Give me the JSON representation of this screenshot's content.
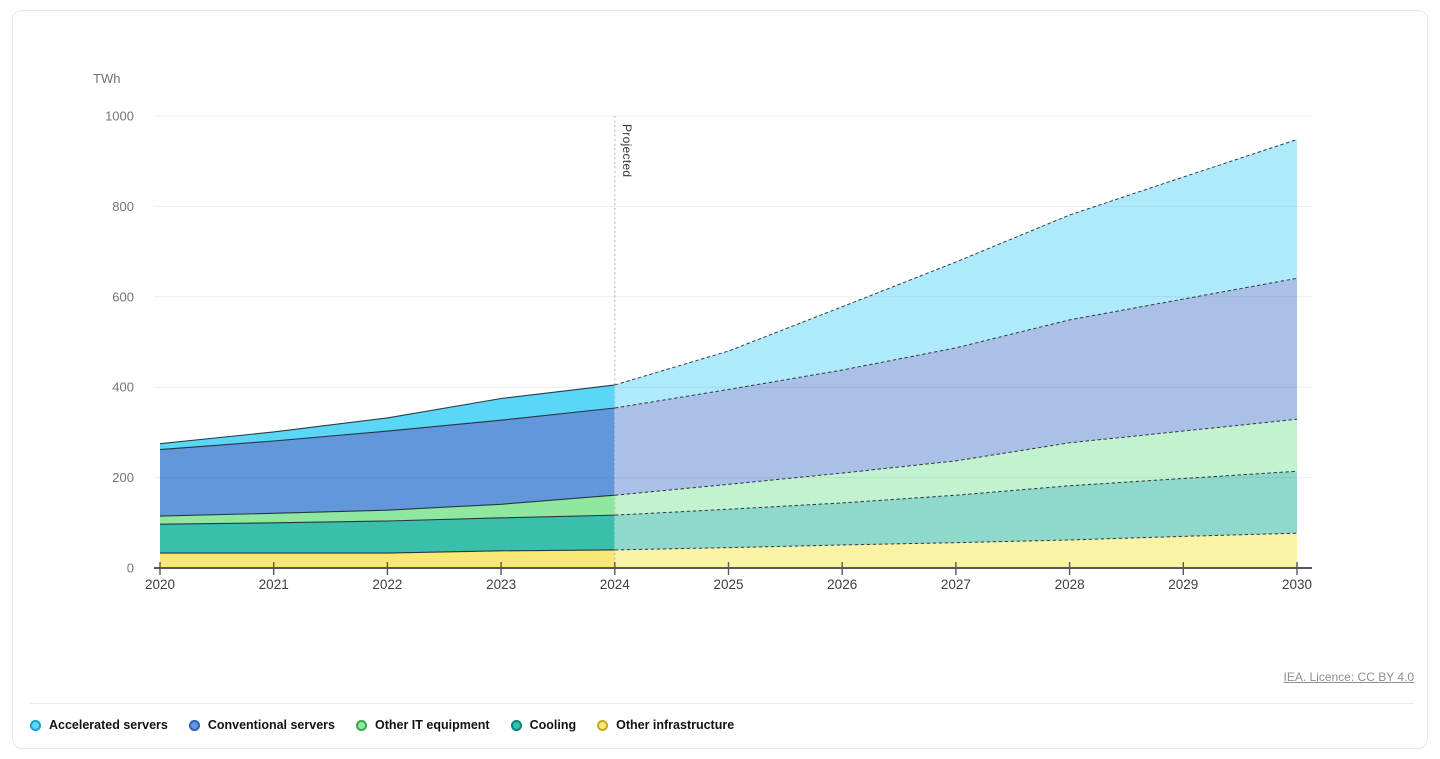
{
  "unit_label": "TWh",
  "footer": {
    "source_label": "IEA. Licence: CC BY 4.0"
  },
  "chart_data": {
    "type": "area",
    "stacked": true,
    "unit": "TWh",
    "x": [
      2020,
      2021,
      2022,
      2023,
      2024,
      2025,
      2026,
      2027,
      2028,
      2029,
      2030
    ],
    "projected_from": 2024,
    "projected_label": "Projected",
    "ylim": [
      0,
      1000
    ],
    "yticks": [
      0,
      200,
      400,
      600,
      800,
      1000
    ],
    "grid": "horizontal",
    "legend_position": "bottom-left",
    "series": [
      {
        "name": "Other infrastructure",
        "values": [
          33,
          33,
          33,
          38,
          40,
          45,
          51,
          56,
          62,
          70,
          77
        ],
        "color": "#FAE876",
        "color_projected": "#FAF3A6",
        "legend_ring": "#c2ab2a"
      },
      {
        "name": "Cooling",
        "values": [
          64,
          67,
          71,
          73,
          77,
          85,
          93,
          105,
          120,
          128,
          137
        ],
        "color": "#3BBFAD",
        "color_projected": "#8FD8CC",
        "legend_ring": "#0e8578"
      },
      {
        "name": "Other IT equipment",
        "values": [
          18,
          21,
          24,
          30,
          44,
          55,
          66,
          76,
          95,
          105,
          115
        ],
        "color": "#90E8A0",
        "color_projected": "#C2F2D0",
        "legend_ring": "#38a653"
      },
      {
        "name": "Conventional servers",
        "values": [
          147,
          160,
          175,
          186,
          193,
          210,
          228,
          250,
          272,
          292,
          312
        ],
        "color": "#6397DC",
        "color_projected": "#ABC0E7",
        "legend_ring": "#3463bb"
      },
      {
        "name": "Accelerated servers",
        "values": [
          13,
          20,
          29,
          48,
          51,
          85,
          140,
          190,
          232,
          270,
          307
        ],
        "color": "#5AD7F6",
        "color_projected": "#AFEAFB",
        "legend_ring": "#1d9fce"
      }
    ],
    "legend_order": [
      "Accelerated servers",
      "Conventional servers",
      "Other IT equipment",
      "Cooling",
      "Other infrastructure"
    ],
    "totals": [
      275,
      301,
      332,
      375,
      405,
      480,
      578,
      677,
      781,
      865,
      948
    ]
  }
}
